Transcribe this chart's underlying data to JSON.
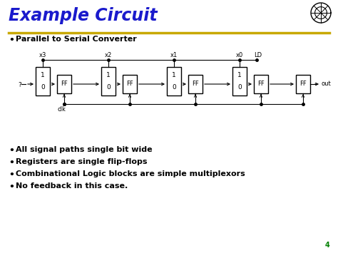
{
  "title": "Example Circuit",
  "title_color": "#1a1aCC",
  "bg_color": "#FFFFFF",
  "gold_line_color": "#C8A800",
  "bullet_items": [
    "Parallel to Serial Converter",
    "All signal paths single bit wide",
    "Registers are single flip-flops",
    "Combinational Logic blocks are simple multiplexors",
    "No feedback in this case."
  ],
  "page_number": "4",
  "page_num_color": "#008000"
}
